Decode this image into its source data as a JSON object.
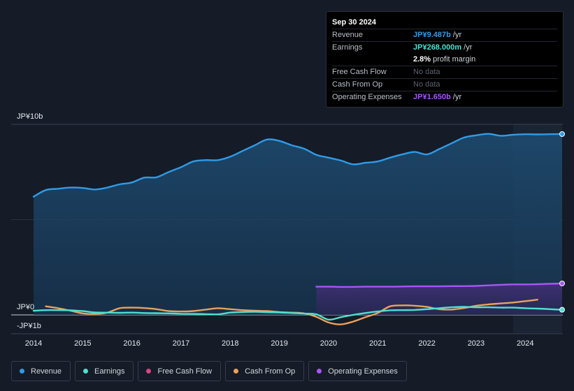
{
  "tooltip": {
    "date": "Sep 30 2024",
    "rows": [
      {
        "label": "Revenue",
        "value": "JP¥9.487b",
        "unit": " /yr",
        "color": "#2f9be7"
      },
      {
        "label": "Earnings",
        "value": "JP¥268.000m",
        "unit": " /yr",
        "color": "#4ee0cf"
      },
      {
        "label": "",
        "value": "2.8%",
        "unit": " profit margin",
        "color": "#ffffff"
      },
      {
        "label": "Free Cash Flow",
        "value": "No data",
        "unit": "",
        "color": "#5c6270"
      },
      {
        "label": "Cash From Op",
        "value": "No data",
        "unit": "",
        "color": "#5c6270"
      },
      {
        "label": "Operating Expenses",
        "value": "JP¥1.650b",
        "unit": " /yr",
        "color": "#a855f7"
      }
    ]
  },
  "legend": [
    {
      "label": "Revenue",
      "color": "#2f9be7"
    },
    {
      "label": "Earnings",
      "color": "#4ee0cf"
    },
    {
      "label": "Free Cash Flow",
      "color": "#d6457f"
    },
    {
      "label": "Cash From Op",
      "color": "#e9a15c"
    },
    {
      "label": "Operating Expenses",
      "color": "#a855f7"
    }
  ],
  "chart_data": {
    "type": "area",
    "title": "",
    "xlabel": "",
    "ylabel": "",
    "y_tick_labels": [
      "JP¥10b",
      "JP¥0",
      "-JP¥1b"
    ],
    "y_ticks": [
      10,
      0,
      -1
    ],
    "ylim": [
      -1,
      10
    ],
    "xlim": [
      2014.0,
      2024.75
    ],
    "x_tick_labels": [
      "2014",
      "2015",
      "2016",
      "2017",
      "2018",
      "2019",
      "2020",
      "2021",
      "2022",
      "2023",
      "2024"
    ],
    "x_ticks": [
      2014,
      2015,
      2016,
      2017,
      2018,
      2019,
      2020,
      2021,
      2022,
      2023,
      2024
    ],
    "highlight_start": 2023.75,
    "series": [
      {
        "name": "Revenue",
        "color": "#2f9be7",
        "x": [
          2014.0,
          2014.25,
          2014.5,
          2014.75,
          2015.0,
          2015.25,
          2015.5,
          2015.75,
          2016.0,
          2016.25,
          2016.5,
          2016.75,
          2017.0,
          2017.25,
          2017.5,
          2017.75,
          2018.0,
          2018.25,
          2018.5,
          2018.75,
          2019.0,
          2019.25,
          2019.5,
          2019.75,
          2020.0,
          2020.25,
          2020.5,
          2020.75,
          2021.0,
          2021.25,
          2021.5,
          2021.75,
          2022.0,
          2022.25,
          2022.5,
          2022.75,
          2023.0,
          2023.25,
          2023.5,
          2023.75,
          2024.0,
          2024.25,
          2024.5,
          2024.75
        ],
        "values": [
          6.2,
          6.55,
          6.62,
          6.68,
          6.66,
          6.58,
          6.68,
          6.85,
          6.95,
          7.2,
          7.22,
          7.5,
          7.75,
          8.05,
          8.12,
          8.12,
          8.3,
          8.6,
          8.9,
          9.2,
          9.13,
          8.9,
          8.72,
          8.4,
          8.25,
          8.1,
          7.9,
          7.98,
          8.05,
          8.25,
          8.42,
          8.55,
          8.42,
          8.7,
          9.0,
          9.3,
          9.42,
          9.5,
          9.4,
          9.45,
          9.48,
          9.47,
          9.48,
          9.487
        ]
      },
      {
        "name": "Earnings",
        "color": "#4ee0cf",
        "x": [
          2014.0,
          2014.25,
          2014.5,
          2014.75,
          2015.0,
          2015.25,
          2015.5,
          2015.75,
          2016.0,
          2016.25,
          2016.5,
          2016.75,
          2017.0,
          2017.25,
          2017.5,
          2017.75,
          2018.0,
          2018.25,
          2018.5,
          2018.75,
          2019.0,
          2019.25,
          2019.5,
          2019.75,
          2020.0,
          2020.25,
          2020.5,
          2020.75,
          2021.0,
          2021.25,
          2021.5,
          2021.75,
          2022.0,
          2022.25,
          2022.5,
          2022.75,
          2023.0,
          2023.25,
          2023.5,
          2023.75,
          2024.0,
          2024.25,
          2024.5,
          2024.75
        ],
        "values": [
          0.22,
          0.25,
          0.25,
          0.24,
          0.2,
          0.13,
          0.12,
          0.11,
          0.12,
          0.1,
          0.09,
          0.08,
          0.06,
          0.05,
          0.04,
          0.03,
          0.12,
          0.15,
          0.16,
          0.14,
          0.13,
          0.1,
          0.07,
          0.03,
          -0.25,
          -0.12,
          0.0,
          0.1,
          0.18,
          0.24,
          0.25,
          0.26,
          0.3,
          0.35,
          0.4,
          0.42,
          0.4,
          0.4,
          0.38,
          0.38,
          0.35,
          0.33,
          0.3,
          0.268
        ]
      },
      {
        "name": "Cash From Op",
        "color": "#e9a15c",
        "x": [
          2014.25,
          2014.5,
          2014.75,
          2015.0,
          2015.25,
          2015.5,
          2015.75,
          2016.0,
          2016.25,
          2016.5,
          2016.75,
          2017.0,
          2017.25,
          2017.5,
          2017.75,
          2018.0,
          2018.25,
          2018.5,
          2018.75,
          2019.0,
          2019.25,
          2019.5,
          2019.75,
          2020.0,
          2020.25,
          2020.5,
          2020.75,
          2021.0,
          2021.25,
          2021.5,
          2021.75,
          2022.0,
          2022.25,
          2022.5,
          2022.75,
          2023.0,
          2023.25,
          2023.5,
          2023.75,
          2024.0,
          2024.25
        ],
        "values": [
          0.45,
          0.35,
          0.22,
          0.08,
          0.05,
          0.12,
          0.35,
          0.38,
          0.36,
          0.3,
          0.2,
          0.18,
          0.2,
          0.28,
          0.35,
          0.3,
          0.25,
          0.22,
          0.2,
          0.15,
          0.12,
          0.08,
          -0.1,
          -0.4,
          -0.5,
          -0.35,
          -0.12,
          0.1,
          0.45,
          0.5,
          0.48,
          0.42,
          0.3,
          0.28,
          0.36,
          0.48,
          0.55,
          0.6,
          0.65,
          0.72,
          0.8
        ]
      },
      {
        "name": "Operating Expenses",
        "color": "#a855f7",
        "x": [
          2019.75,
          2020.0,
          2020.25,
          2020.5,
          2020.75,
          2021.0,
          2021.25,
          2021.5,
          2021.75,
          2022.0,
          2022.25,
          2022.5,
          2022.75,
          2023.0,
          2023.25,
          2023.5,
          2023.75,
          2024.0,
          2024.25,
          2024.5,
          2024.75
        ],
        "values": [
          1.48,
          1.48,
          1.47,
          1.47,
          1.48,
          1.48,
          1.48,
          1.49,
          1.5,
          1.5,
          1.5,
          1.51,
          1.51,
          1.52,
          1.55,
          1.58,
          1.6,
          1.6,
          1.61,
          1.63,
          1.65
        ]
      }
    ]
  }
}
